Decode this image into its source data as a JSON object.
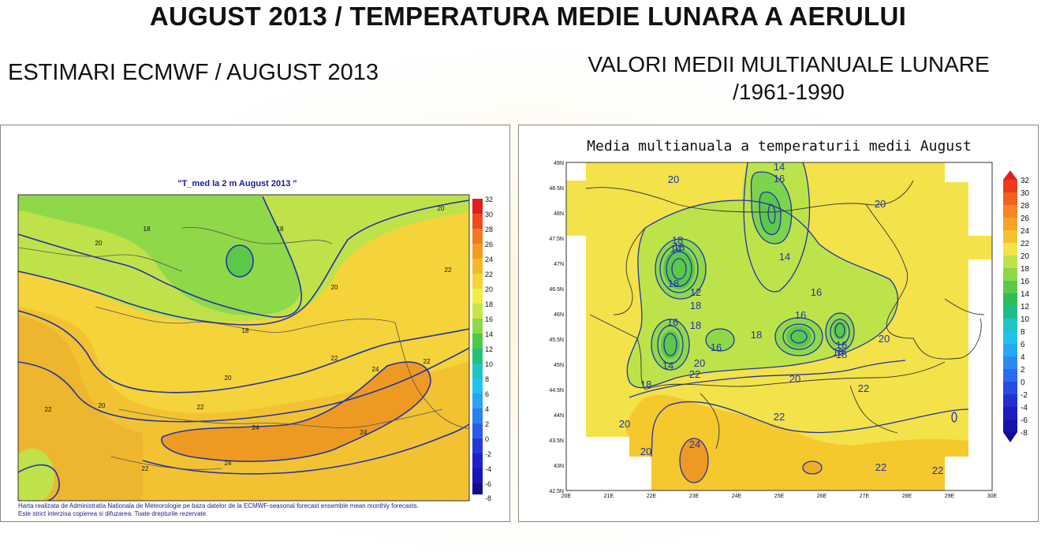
{
  "page": {
    "title": "AUGUST 2013 / TEMPERATURA MEDIE LUNARA A AERULUI",
    "subtitle_left": "ESTIMARI ECMWF / AUGUST 2013",
    "subtitle_right_line1": "VALORI MEDII MULTIANUALE LUNARE",
    "subtitle_right_line2": "/1961-1990"
  },
  "left_map": {
    "title": "\"T_med la 2 m August 2013 \"",
    "footnote_line1": "Harta realizata de Administratia Nationala de Meteorologie pe baza datelor de la ECMWF-seasonal forecast ensemble mean monthly forecasts.",
    "footnote_line2": "Este strict interzisa copierea si difuzarea. Toate drepturile rezervate.",
    "colorbar_labels": [
      "32",
      "30",
      "28",
      "26",
      "24",
      "22",
      "20",
      "18",
      "16",
      "14",
      "12",
      "10",
      "8",
      "6",
      "4",
      "2",
      "0",
      "-2",
      "-4",
      "-6",
      "-8"
    ],
    "contour_labels": [
      "20",
      "18",
      "18",
      "20",
      "20",
      "22",
      "18",
      "22",
      "20",
      "22",
      "24",
      "22",
      "20",
      "22",
      "24",
      "24",
      "24",
      "22"
    ]
  },
  "right_map": {
    "title": "Media multianuala a temperaturii medii August",
    "lat_labels": [
      "49N",
      "48.5N",
      "48N",
      "47.5N",
      "47N",
      "46.5N",
      "46N",
      "45.5N",
      "45N",
      "44.5N",
      "44N",
      "43.5N",
      "43N",
      "42.5N"
    ],
    "lon_labels": [
      "20E",
      "21E",
      "22E",
      "23E",
      "24E",
      "25E",
      "26E",
      "27E",
      "28E",
      "29E",
      "30E"
    ],
    "colorbar_labels": [
      "32",
      "30",
      "28",
      "26",
      "24",
      "22",
      "20",
      "18",
      "16",
      "14",
      "12",
      "10",
      "8",
      "6",
      "4",
      "2",
      "0",
      "-2",
      "-4",
      "-6",
      "-8"
    ],
    "contour_labels": [
      "14",
      "16",
      "20",
      "20",
      "18",
      "14",
      "18",
      "14",
      "12",
      "18",
      "16",
      "16",
      "18",
      "18",
      "16",
      "16",
      "20",
      "16",
      "14",
      "20",
      "18",
      "22",
      "20",
      "18",
      "18",
      "20",
      "22",
      "22",
      "20",
      "24",
      "22",
      "22",
      "18"
    ]
  },
  "colors": {
    "orange": "#f5a623",
    "yellow": "#f7e23a",
    "lightgreen": "#b7e04a",
    "green": "#7cd44d",
    "contour_blue": "#2233aa"
  }
}
